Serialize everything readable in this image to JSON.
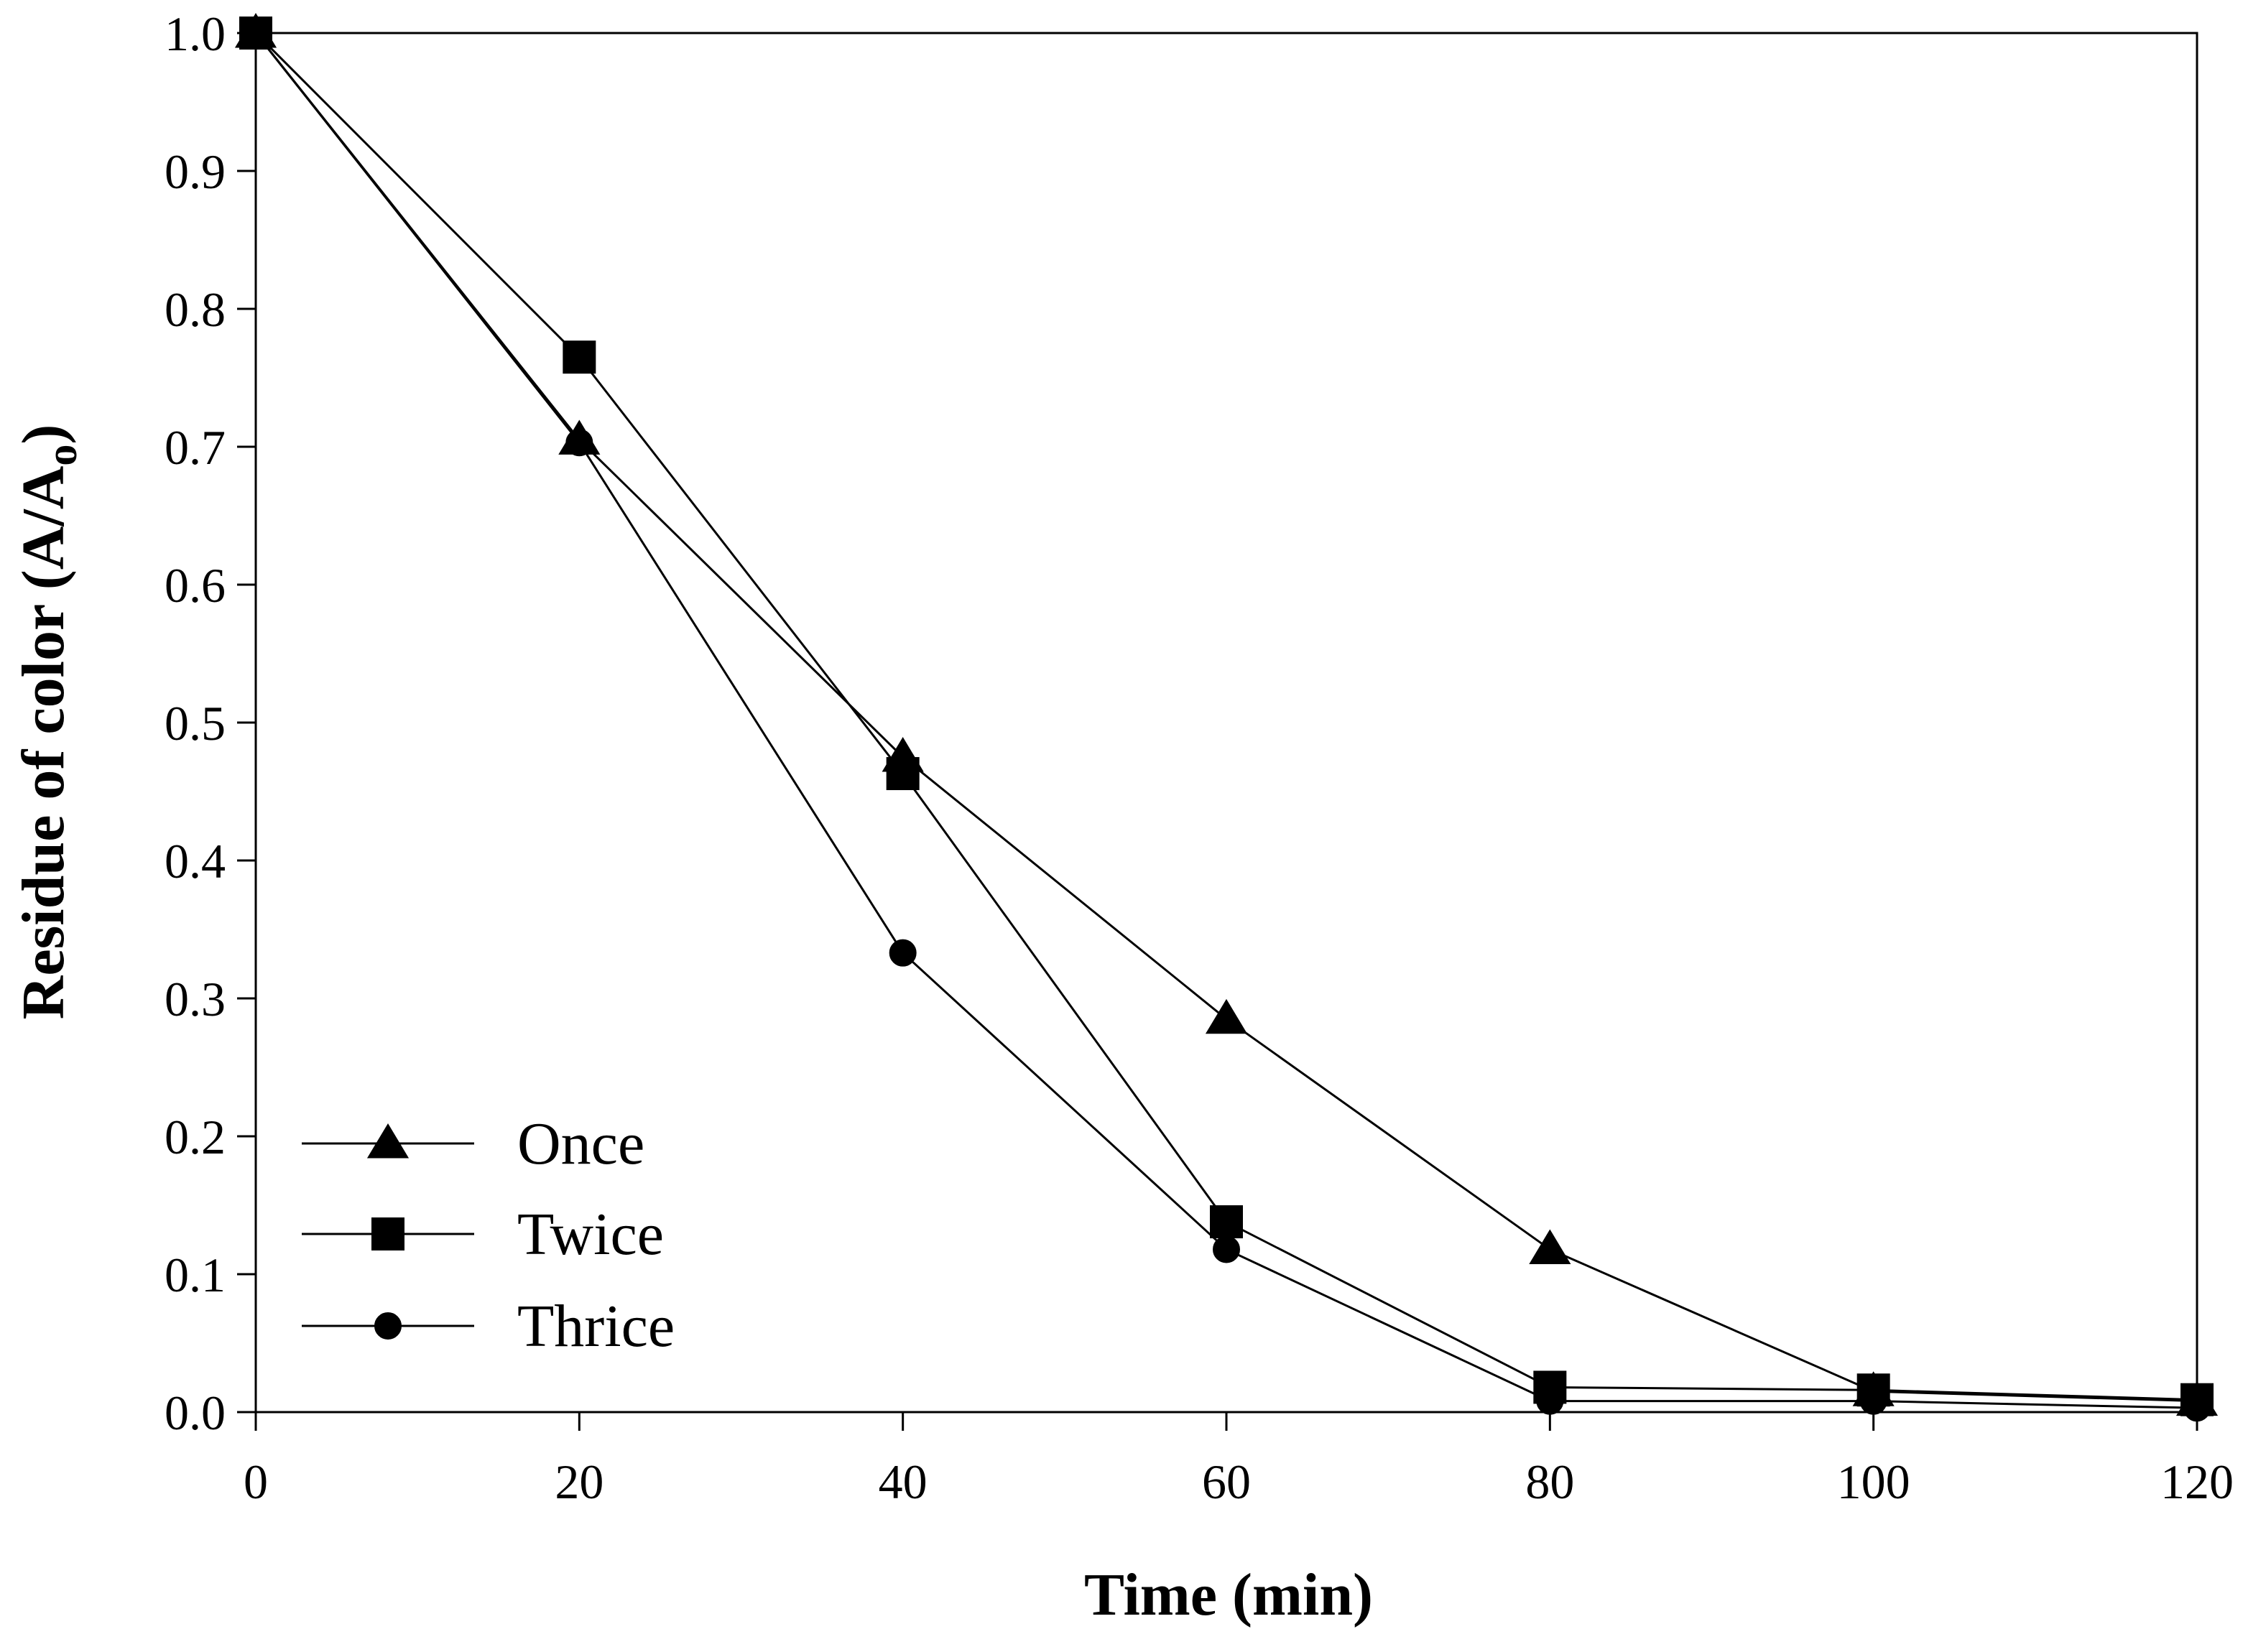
{
  "chart_data": {
    "type": "line",
    "title": "",
    "xlabel": "Time (min)",
    "ylabel": {
      "main": "Residue of color (A/A",
      "subscript": "o",
      "close": ")"
    },
    "xlim": [
      0,
      120
    ],
    "ylim": [
      0,
      1.0
    ],
    "x_ticks": [
      0,
      20,
      40,
      60,
      80,
      100,
      120
    ],
    "x_tick_labels": [
      "0",
      "20",
      "40",
      "60",
      "80",
      "100",
      "120"
    ],
    "y_ticks": [
      0,
      0.1,
      0.2,
      0.3,
      0.4,
      0.5,
      0.6,
      0.7,
      0.8,
      0.9,
      1.0
    ],
    "y_tick_labels": [
      "0.0",
      "0.1",
      "0.2",
      "0.3",
      "0.4",
      "0.5",
      "0.6",
      "0.7",
      "0.8",
      "0.9",
      "1.0"
    ],
    "grid": false,
    "legend_position": "bottom-left",
    "x": [
      0,
      20,
      40,
      60,
      80,
      100,
      120
    ],
    "series": [
      {
        "name": "Once",
        "marker": "triangle",
        "values": [
          1.0,
          0.705,
          0.475,
          0.285,
          0.118,
          0.015,
          0.008
        ]
      },
      {
        "name": "Twice",
        "marker": "square",
        "values": [
          1.0,
          0.765,
          0.463,
          0.138,
          0.018,
          0.016,
          0.009
        ]
      },
      {
        "name": "Thrice",
        "marker": "circle",
        "values": [
          1.0,
          0.703,
          0.333,
          0.118,
          0.008,
          0.008,
          0.003
        ]
      }
    ],
    "colors": {
      "line": "#000000",
      "marker": "#000000",
      "background": "#ffffff"
    }
  }
}
